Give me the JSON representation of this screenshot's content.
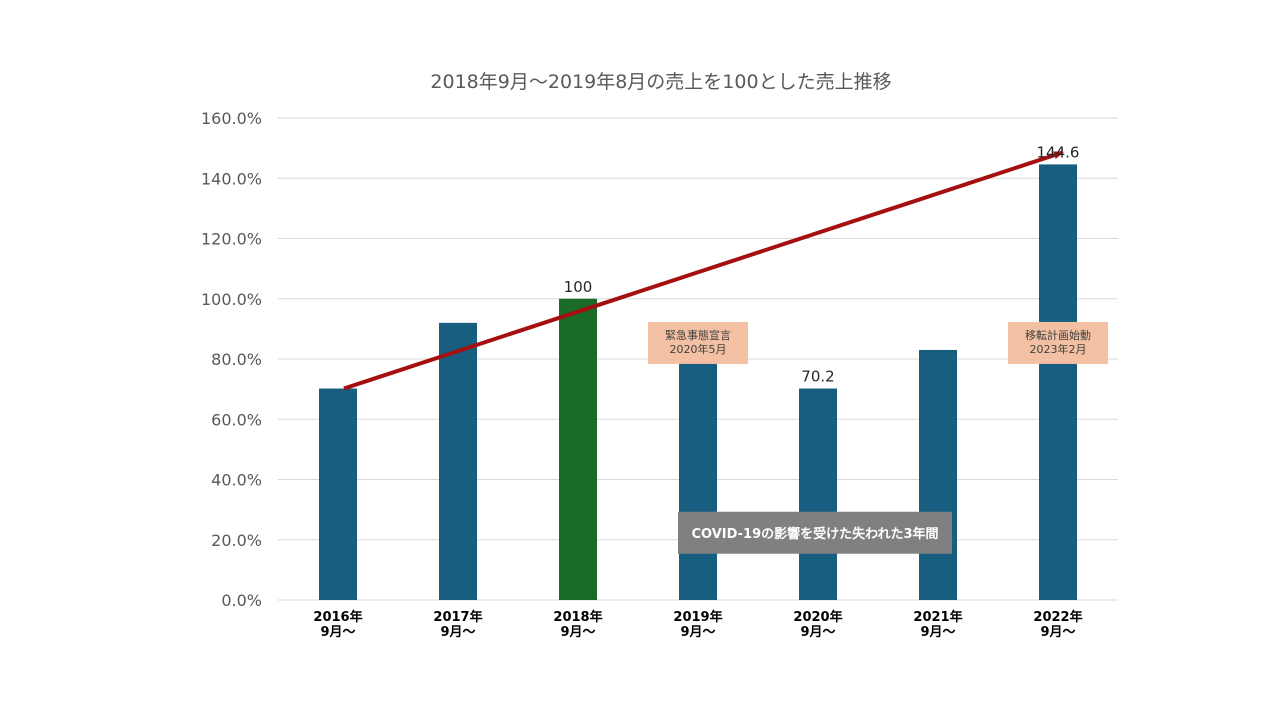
{
  "chart_data": {
    "type": "bar",
    "title": "2018年9月～2019年8月の売上を100とした売上推移",
    "categories": [
      [
        "2016年",
        "9月～"
      ],
      [
        "2017年",
        "9月～"
      ],
      [
        "2018年",
        "9月～"
      ],
      [
        "2019年",
        "9月～"
      ],
      [
        "2020年",
        "9月～"
      ],
      [
        "2021年",
        "9月～"
      ],
      [
        "2022年",
        "9月～"
      ]
    ],
    "values": [
      70.2,
      92,
      100,
      85,
      70.2,
      83,
      144.6
    ],
    "highlight_index": 2,
    "data_labels": [
      {
        "index": 2,
        "text": "100"
      },
      {
        "index": 4,
        "text": "70.2"
      },
      {
        "index": 6,
        "text": "144.6"
      }
    ],
    "y_ticks": [
      "0.0%",
      "20.0%",
      "40.0%",
      "60.0%",
      "80.0%",
      "100.0%",
      "120.0%",
      "140.0%",
      "160.0%"
    ],
    "ylim": [
      0,
      160
    ],
    "grid": true,
    "xlabel": "",
    "ylabel": "",
    "colors": {
      "bar": "#175e81",
      "highlight_bar": "#1b6b28",
      "trend_arrow": "#a50f0f",
      "callout_fill": "#f4c0a3",
      "covid_box_fill": "#808080",
      "gridline": "#d9d9d9",
      "title": "#595959",
      "tick_label": "#595959"
    },
    "trend_arrow": {
      "from_index": 0,
      "from_value": 70.2,
      "to_index": 6,
      "to_value": 148.5
    },
    "annotations": [
      {
        "lines": [
          "緊急事態宣言",
          "2020年5月"
        ],
        "at_index": 3,
        "value": 85
      },
      {
        "lines": [
          "移転計画始動",
          "2023年2月"
        ],
        "at_index": 6,
        "value": 85
      }
    ],
    "covid_note": {
      "text": "COVID-19の影響を受けた失われた3年間",
      "from_index": 3,
      "to_index": 5,
      "value": 20
    }
  }
}
